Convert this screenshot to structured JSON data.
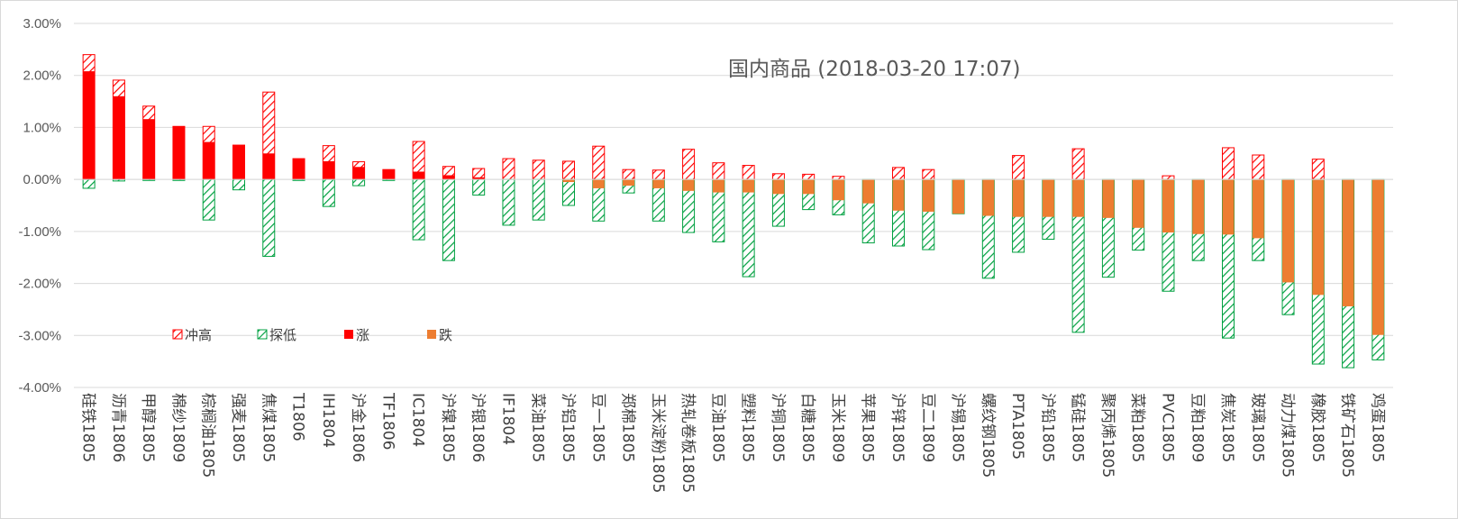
{
  "chart_data": {
    "type": "bar",
    "title": "国内商品 (2018-03-20 17:07)",
    "xlabel": "",
    "ylabel": "",
    "ylim": [
      -0.04,
      0.03
    ],
    "ytick_labels": [
      "3.00%",
      "2.00%",
      "1.00%",
      "0.00%",
      "-1.00%",
      "-2.00%",
      "-3.00%",
      "-4.00%"
    ],
    "ytick_values": [
      0.03,
      0.02,
      0.01,
      0,
      -0.01,
      -0.02,
      -0.03,
      -0.04
    ],
    "grid": true,
    "legend_position": "lower-left inside plot",
    "categories": [
      "硅铁1805",
      "沥青1806",
      "甲醇1805",
      "棉纱1809",
      "棕榈油1805",
      "强麦1805",
      "焦煤1805",
      "T1806",
      "IH1804",
      "沪金1806",
      "TF1806",
      "IC1804",
      "沪镍1805",
      "沪银1806",
      "IF1804",
      "菜油1805",
      "沪铝1805",
      "豆一1805",
      "郑棉1805",
      "玉米淀粉1805",
      "热轧卷板1805",
      "豆油1805",
      "塑料1805",
      "沪铜1805",
      "白糖1805",
      "玉米1809",
      "苹果1805",
      "沪锌1805",
      "豆二1809",
      "沪锡1805",
      "螺纹钢1805",
      "PTA1805",
      "沪铅1805",
      "锰硅1805",
      "聚丙烯1805",
      "菜粕1805",
      "PVC1805",
      "豆粕1809",
      "焦炭1805",
      "玻璃1805",
      "动力煤1805",
      "橡胶1805",
      "铁矿石1805",
      "鸡蛋1805"
    ],
    "series": [
      {
        "name": "冲高",
        "color": "#ff0000",
        "pattern": "hatched",
        "values": [
          0.024,
          0.0191,
          0.0141,
          0.0102,
          0.0102,
          0.0066,
          0.0168,
          0.004,
          0.0065,
          0.0034,
          0.0019,
          0.0073,
          0.0025,
          0.0021,
          0.004,
          0.0037,
          0.0035,
          0.0064,
          0.0019,
          0.0018,
          0.0058,
          0.0032,
          0.0027,
          0.0011,
          0.001,
          0.0006,
          0,
          0.0023,
          0.0019,
          0,
          0,
          0.0046,
          0,
          0.0059,
          0,
          0,
          0.0007,
          0,
          0.0061,
          0.0047,
          0,
          0.0039,
          0,
          0
        ]
      },
      {
        "name": "探低",
        "color": "#00a040",
        "pattern": "hatched",
        "values": [
          -0.0017,
          -0.0003,
          -0.0002,
          -0.0002,
          -0.0078,
          -0.002,
          -0.0148,
          -0.0002,
          -0.0052,
          -0.0012,
          -0.0002,
          -0.0116,
          -0.0156,
          -0.003,
          -0.0088,
          -0.0078,
          -0.005,
          -0.008,
          -0.0026,
          -0.008,
          -0.0102,
          -0.012,
          -0.0187,
          -0.009,
          -0.0058,
          -0.0068,
          -0.0122,
          -0.0128,
          -0.0135,
          -0.0066,
          -0.019,
          -0.014,
          -0.0115,
          -0.0294,
          -0.0188,
          -0.0136,
          -0.0215,
          -0.0156,
          -0.0305,
          -0.0156,
          -0.026,
          -0.0355,
          -0.0362,
          -0.0347
        ]
      },
      {
        "name": "涨",
        "color": "#ff0000",
        "pattern": "solid",
        "values": [
          0.0208,
          0.016,
          0.0116,
          0.0102,
          0.0072,
          0.0066,
          0.005,
          0.004,
          0.0035,
          0.0024,
          0.0019,
          0.0015,
          0.0008,
          0.0004,
          0,
          0,
          0,
          0,
          0,
          0,
          0,
          0,
          0,
          0,
          0,
          0,
          0,
          0,
          0,
          0,
          0,
          0,
          0,
          0,
          0,
          0,
          0,
          0,
          0,
          0,
          0,
          0,
          0,
          0
        ]
      },
      {
        "name": "跌",
        "color": "#ed7d31",
        "pattern": "solid",
        "values": [
          0,
          0,
          0,
          0,
          0,
          0,
          0,
          0,
          0,
          0,
          0,
          0,
          0,
          0,
          0,
          0,
          -0.0005,
          -0.0017,
          -0.0012,
          -0.0017,
          -0.0022,
          -0.0025,
          -0.0025,
          -0.0028,
          -0.0028,
          -0.004,
          -0.0046,
          -0.006,
          -0.0062,
          -0.0066,
          -0.007,
          -0.0072,
          -0.0072,
          -0.0072,
          -0.0074,
          -0.0093,
          -0.0102,
          -0.0105,
          -0.0106,
          -0.0113,
          -0.0198,
          -0.0222,
          -0.0244,
          -0.0299
        ]
      }
    ]
  }
}
